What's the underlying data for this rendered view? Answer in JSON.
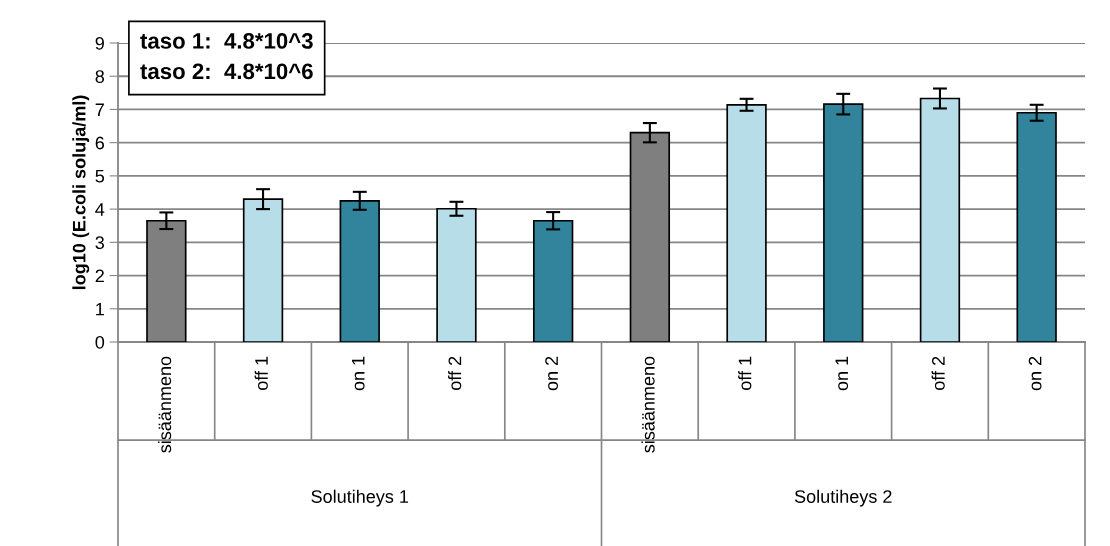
{
  "chart_data": {
    "type": "bar",
    "ylabel": "log10 (E.coli soluja/ml)",
    "categories": [
      "sisäänmeno",
      "off 1",
      "on 1",
      "off 2",
      "on 2",
      "sisäänmeno",
      "off 1",
      "on 1",
      "off 2",
      "on 2"
    ],
    "values": [
      3.65,
      4.3,
      4.25,
      4.01,
      3.65,
      6.3,
      7.14,
      7.16,
      7.33,
      6.9
    ],
    "errors": [
      0.25,
      0.3,
      0.27,
      0.21,
      0.26,
      0.29,
      0.18,
      0.31,
      0.3,
      0.24
    ],
    "colors": [
      "#7f7f7f",
      "#b7dde8",
      "#31849b",
      "#b7dde8",
      "#31849b",
      "#7f7f7f",
      "#b7dde8",
      "#31849b",
      "#b7dde8",
      "#31849b"
    ],
    "ylim": [
      0,
      9
    ],
    "yticks": [
      0,
      1,
      2,
      3,
      4,
      5,
      6,
      7,
      8,
      9
    ],
    "grid": "y",
    "annotations": [
      "taso 1:  4.8*10^3\ntaso 2:  4.8*10^6",
      "Solutiheys 1",
      "Solutiheys 2"
    ]
  }
}
